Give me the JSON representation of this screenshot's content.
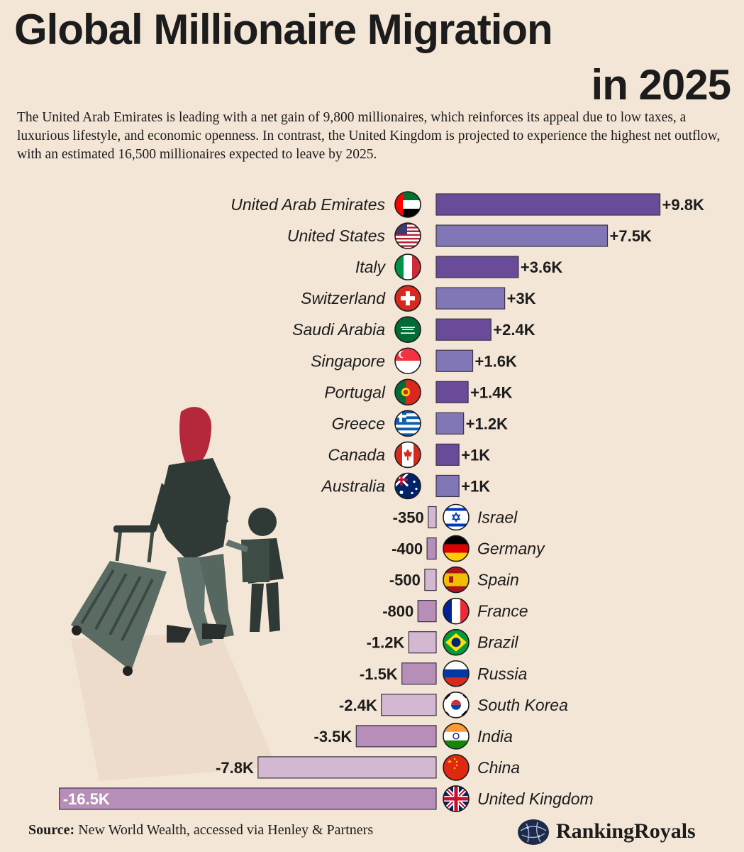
{
  "header": {
    "title_line1": "Global Millionaire Migration",
    "title_line2": "in 2025",
    "subtitle": "The United Arab Emirates is leading with a net gain of 9,800 millionaires, which reinforces its appeal due to low taxes, a luxurious lifestyle, and economic openness. In contrast, the United Kingdom is projected to experience the highest net outflow, with an estimated 16,500 millionaires expected to leave by 2025."
  },
  "footer": {
    "source_label": "Source:",
    "source_text": "New World Wealth, accessed via Henley & Partners",
    "brand": "RankingRoyals"
  },
  "colors": {
    "background": "#f3e6d6",
    "positive_dark": "#6a4b99",
    "positive_light": "#8277b6",
    "negative_dark": "#b68eb8",
    "negative_light": "#d4b8d2",
    "illustration": "#5a6b64",
    "hair": "#b5283c"
  },
  "illustration": "woman-and-child-with-suitcase",
  "chart_data": {
    "type": "bar",
    "orientation": "horizontal",
    "title": "Global Millionaire Migration in 2025",
    "unit": "millionaires (net)",
    "categories": [
      "United Arab Emirates",
      "United States",
      "Italy",
      "Switzerland",
      "Saudi Arabia",
      "Singapore",
      "Portugal",
      "Greece",
      "Canada",
      "Australia",
      "Israel",
      "Germany",
      "Spain",
      "France",
      "Brazil",
      "Russia",
      "South Korea",
      "India",
      "China",
      "United Kingdom"
    ],
    "values": [
      9800,
      7500,
      3600,
      3000,
      2400,
      1600,
      1400,
      1200,
      1000,
      1000,
      -350,
      -400,
      -500,
      -800,
      -1200,
      -1500,
      -2400,
      -3500,
      -7800,
      -16500
    ],
    "labels": [
      "+9.8K",
      "+7.5K",
      "+3.6K",
      "+3K",
      "+2.4K",
      "+1.6K",
      "+1.4K",
      "+1.2K",
      "+1K",
      "+1K",
      "-350",
      "-400",
      "-500",
      "-800",
      "-1.2K",
      "-1.5K",
      "-2.4K",
      "-3.5K",
      "-7.8K",
      "-16.5K"
    ],
    "flags": [
      "uae-flag-icon",
      "usa-flag-icon",
      "italy-flag-icon",
      "switzerland-flag-icon",
      "saudi-arabia-flag-icon",
      "singapore-flag-icon",
      "portugal-flag-icon",
      "greece-flag-icon",
      "canada-flag-icon",
      "australia-flag-icon",
      "israel-flag-icon",
      "germany-flag-icon",
      "spain-flag-icon",
      "france-flag-icon",
      "brazil-flag-icon",
      "russia-flag-icon",
      "south-korea-flag-icon",
      "india-flag-icon",
      "china-flag-icon",
      "uk-flag-icon"
    ],
    "xlim": [
      -16500,
      9800
    ],
    "grid": false,
    "legend": "none"
  }
}
